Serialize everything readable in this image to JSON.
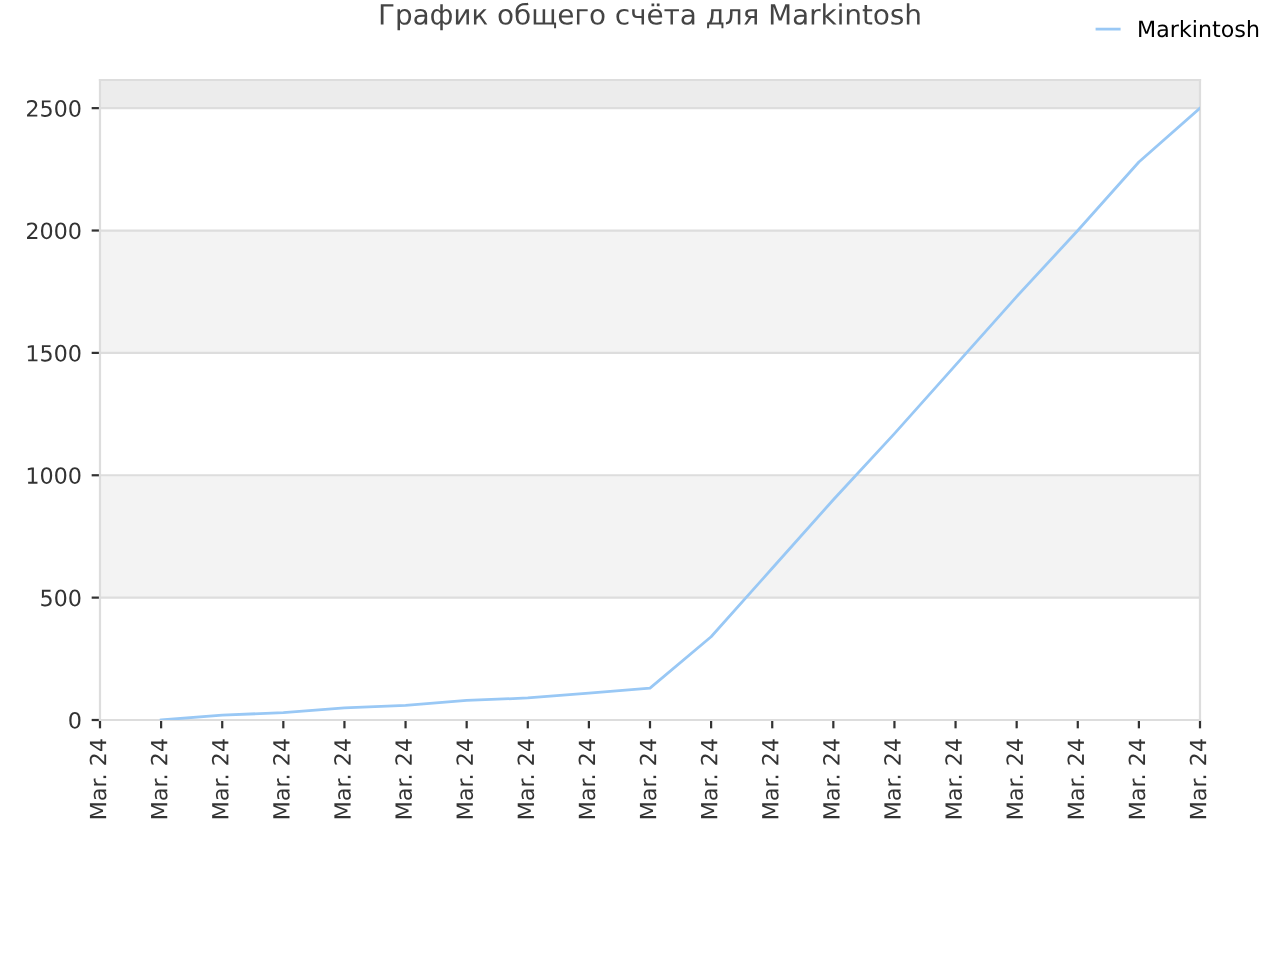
{
  "chart_data": {
    "type": "line",
    "title": "График общего счёта для Markintosh",
    "categories": [
      "Mar. 24",
      "Mar. 24",
      "Mar. 24",
      "Mar. 24",
      "Mar. 24",
      "Mar. 24",
      "Mar. 24",
      "Mar. 24",
      "Mar. 24",
      "Mar. 24",
      "Mar. 24",
      "Mar. 24",
      "Mar. 24",
      "Mar. 24",
      "Mar. 24",
      "Mar. 24",
      "Mar. 24",
      "Mar. 24",
      "Mar. 24"
    ],
    "series": [
      {
        "name": "Markintosh",
        "color": "#99c8f5",
        "values": [
          null,
          0,
          20,
          30,
          50,
          60,
          80,
          90,
          110,
          130,
          340,
          620,
          900,
          1170,
          1450,
          1730,
          2000,
          2280,
          2500
        ]
      }
    ],
    "ylim": [
      0,
      2615
    ],
    "yticks": [
      0,
      500,
      1000,
      1500,
      2000,
      2500
    ],
    "bands": [
      {
        "axis": "y",
        "from": 500,
        "to": 1000,
        "color": "#f3f3f3"
      },
      {
        "axis": "y",
        "from": 1500,
        "to": 2000,
        "color": "#f3f3f3"
      },
      {
        "axis": "y",
        "from": 2500,
        "to": 2615,
        "color": "#ececec"
      }
    ],
    "grid": "y",
    "legend": "top right",
    "marker": "none",
    "line_style": "solid"
  }
}
